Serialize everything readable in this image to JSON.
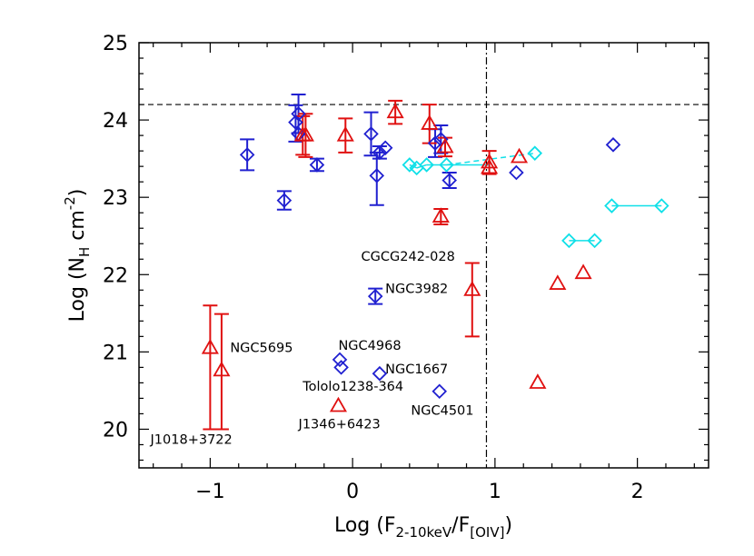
{
  "chart_data": {
    "type": "scatter",
    "title": "",
    "xlabel": "Log (F2-10keV/F[OIV])",
    "xlabel_parts": {
      "main": "Log (F",
      "sub": "2-10keV",
      "sep": "/F",
      "sub2": "[OIV]",
      "end": ")"
    },
    "ylabel": "Log (NH cm-2)",
    "ylabel_parts": {
      "main": "Log (N",
      "sub": "H",
      "mid": " cm",
      "sup": "-2",
      "end": ")"
    },
    "xlim": [
      -1.5,
      2.5
    ],
    "ylim": [
      19.5,
      25.0
    ],
    "x_ticks": [
      {
        "value": -1,
        "label": "−1"
      },
      {
        "value": 0,
        "label": "0"
      },
      {
        "value": 1,
        "label": "1"
      },
      {
        "value": 2,
        "label": "2"
      }
    ],
    "y_ticks": [
      {
        "value": 20,
        "label": "20"
      },
      {
        "value": 21,
        "label": "21"
      },
      {
        "value": 22,
        "label": "22"
      },
      {
        "value": 23,
        "label": "23"
      },
      {
        "value": 24,
        "label": "24"
      },
      {
        "value": 25,
        "label": "25"
      }
    ],
    "reference_lines": {
      "horizontal_y": 24.2,
      "vertical_x": 0.94
    },
    "colors": {
      "blue": "#2020d0",
      "red": "#e01010",
      "cyan": "#10e0e8",
      "axis": "#000000"
    },
    "series": [
      {
        "name": "blue-diamonds",
        "marker": "diamond",
        "color": "#2020d0",
        "points": [
          {
            "x": -0.74,
            "y": 23.55,
            "yerr": [
              0.2,
              0.2
            ]
          },
          {
            "x": -0.48,
            "y": 22.96,
            "yerr": [
              0.12,
              0.12
            ]
          },
          {
            "x": -0.4,
            "y": 23.97,
            "yerr": [
              0.25,
              0.22
            ]
          },
          {
            "x": -0.38,
            "y": 24.08,
            "yerr": [
              0.25,
              0.25
            ]
          },
          {
            "x": -0.38,
            "y": 23.82,
            "yerr": [
              0.0,
              0.0
            ]
          },
          {
            "x": -0.25,
            "y": 23.42,
            "yerr": [
              0.08,
              0.08
            ]
          },
          {
            "x": 0.13,
            "y": 23.82,
            "yerr": [
              0.28,
              0.28
            ]
          },
          {
            "x": 0.17,
            "y": 23.28,
            "yerr": [
              0.38,
              0.3
            ]
          },
          {
            "x": 0.19,
            "y": 23.58,
            "yerr": [
              0.08,
              0.08
            ]
          },
          {
            "x": 0.23,
            "y": 23.64,
            "yerr": [
              0.0,
              0.0
            ]
          },
          {
            "x": 0.58,
            "y": 23.7,
            "yerr": [
              0.18,
              0.18
            ]
          },
          {
            "x": 0.62,
            "y": 23.75,
            "yerr": [
              0.18,
              0.18
            ]
          },
          {
            "x": 0.68,
            "y": 23.22,
            "yerr": [
              0.1,
              0.1
            ]
          },
          {
            "x": 1.15,
            "y": 23.32,
            "yerr": [
              0.0,
              0.0
            ]
          },
          {
            "x": 1.83,
            "y": 23.68,
            "yerr": [
              0.0,
              0.0
            ]
          },
          {
            "x": 0.16,
            "y": 21.72,
            "yerr": [
              0.1,
              0.1
            ]
          },
          {
            "x": -0.09,
            "y": 20.9,
            "yerr": [
              0.0,
              0.0
            ]
          },
          {
            "x": -0.08,
            "y": 20.8,
            "yerr": [
              0.0,
              0.0
            ]
          },
          {
            "x": 0.19,
            "y": 20.72,
            "yerr": [
              0.0,
              0.0
            ]
          },
          {
            "x": 0.61,
            "y": 20.49,
            "yerr": [
              0.0,
              0.0
            ]
          }
        ]
      },
      {
        "name": "red-triangles",
        "marker": "triangle",
        "color": "#e01010",
        "points": [
          {
            "x": -0.35,
            "y": 23.8,
            "yerr": [
              0.25,
              0.25
            ]
          },
          {
            "x": -0.33,
            "y": 23.8,
            "yerr": [
              0.28,
              0.28
            ]
          },
          {
            "x": -0.05,
            "y": 23.8,
            "yerr": [
              0.22,
              0.22
            ]
          },
          {
            "x": 0.3,
            "y": 24.1,
            "yerr": [
              0.15,
              0.15
            ]
          },
          {
            "x": 0.54,
            "y": 23.95,
            "yerr": [
              0.25,
              0.25
            ]
          },
          {
            "x": 0.65,
            "y": 23.65,
            "yerr": [
              0.12,
              0.12
            ]
          },
          {
            "x": 0.62,
            "y": 22.75,
            "yerr": [
              0.1,
              0.1
            ]
          },
          {
            "x": 0.96,
            "y": 23.45,
            "yerr": [
              0.15,
              0.15
            ]
          },
          {
            "x": 0.96,
            "y": 23.38,
            "yerr": [
              0.0,
              0.0
            ]
          },
          {
            "x": 1.17,
            "y": 23.52,
            "yerr": [
              0.0,
              0.0
            ]
          },
          {
            "x": 0.84,
            "y": 21.8,
            "yerr": [
              0.6,
              0.35
            ]
          },
          {
            "x": 1.44,
            "y": 21.88,
            "yerr": [
              0.0,
              0.0
            ]
          },
          {
            "x": 1.62,
            "y": 22.02,
            "yerr": [
              0.0,
              0.0
            ]
          },
          {
            "x": 1.3,
            "y": 20.6,
            "yerr": [
              0.0,
              0.0
            ]
          },
          {
            "x": -1.0,
            "y": 21.05,
            "yerr": [
              1.05,
              0.55
            ]
          },
          {
            "x": -0.92,
            "y": 20.76,
            "yerr": [
              0.76,
              0.73
            ]
          },
          {
            "x": -0.1,
            "y": 20.3,
            "yerr": [
              0.0,
              0.0
            ]
          }
        ]
      },
      {
        "name": "cyan-diamonds",
        "marker": "diamond",
        "color": "#10e0e8",
        "points": [
          {
            "x": 0.4,
            "y": 23.42
          },
          {
            "x": 0.45,
            "y": 23.38
          },
          {
            "x": 0.52,
            "y": 23.42
          },
          {
            "x": 0.66,
            "y": 23.42
          },
          {
            "x": 1.28,
            "y": 23.57
          },
          {
            "x": 1.52,
            "y": 22.44
          },
          {
            "x": 1.7,
            "y": 22.44
          },
          {
            "x": 1.82,
            "y": 22.89
          },
          {
            "x": 2.17,
            "y": 22.89
          }
        ],
        "links": [
          {
            "x1": 0.4,
            "y1": 23.42,
            "x2": 0.45,
            "y2": 23.38,
            "style": "solid"
          },
          {
            "x1": 0.45,
            "y1": 23.38,
            "x2": 0.52,
            "y2": 23.42,
            "style": "solid"
          },
          {
            "x1": 0.52,
            "y1": 23.42,
            "x2": 0.96,
            "y2": 23.42,
            "style": "solid"
          },
          {
            "x1": 0.66,
            "y1": 23.42,
            "x2": 1.28,
            "y2": 23.57,
            "style": "dashed"
          },
          {
            "x1": 1.52,
            "y1": 22.44,
            "x2": 1.7,
            "y2": 22.44,
            "style": "solid"
          },
          {
            "x1": 1.82,
            "y1": 22.89,
            "x2": 2.17,
            "y2": 22.89,
            "style": "solid"
          }
        ]
      }
    ],
    "annotations": [
      {
        "text": "CGCG242-028",
        "x": 0.06,
        "y": 22.18
      },
      {
        "text": "NGC3982",
        "x": 0.23,
        "y": 21.76
      },
      {
        "text": "NGC5695",
        "x": -0.86,
        "y": 21.0
      },
      {
        "text": "NGC4968",
        "x": -0.1,
        "y": 21.03
      },
      {
        "text": "NGC1667",
        "x": 0.23,
        "y": 20.72
      },
      {
        "text": "Tololo1238-364",
        "x": -0.35,
        "y": 20.5
      },
      {
        "text": "J1346+6423",
        "x": -0.38,
        "y": 20.01
      },
      {
        "text": "NGC4501",
        "x": 0.41,
        "y": 20.19
      },
      {
        "text": "J1018+3722",
        "x": -1.42,
        "y": 19.81
      }
    ]
  }
}
